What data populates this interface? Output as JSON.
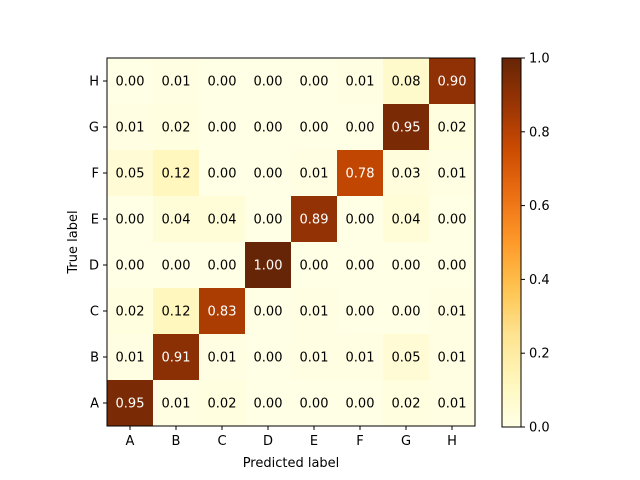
{
  "chart_data": {
    "type": "heatmap",
    "xlabel": "Predicted label",
    "ylabel": "True label",
    "x_categories": [
      "A",
      "B",
      "C",
      "D",
      "E",
      "F",
      "G",
      "H"
    ],
    "y_categories": [
      "A",
      "B",
      "C",
      "D",
      "E",
      "F",
      "G",
      "H"
    ],
    "y_order": "A at bottom, H at top",
    "value_format": "2 decimals",
    "matrix": [
      [
        0.95,
        0.01,
        0.02,
        0.0,
        0.0,
        0.0,
        0.02,
        0.01
      ],
      [
        0.01,
        0.91,
        0.01,
        0.0,
        0.01,
        0.01,
        0.05,
        0.01
      ],
      [
        0.02,
        0.12,
        0.83,
        0.0,
        0.01,
        0.0,
        0.0,
        0.01
      ],
      [
        0.0,
        0.0,
        0.0,
        1.0,
        0.0,
        0.0,
        0.0,
        0.0
      ],
      [
        0.0,
        0.04,
        0.04,
        0.0,
        0.89,
        0.0,
        0.04,
        0.0
      ],
      [
        0.05,
        0.12,
        0.0,
        0.0,
        0.01,
        0.78,
        0.03,
        0.01
      ],
      [
        0.01,
        0.02,
        0.0,
        0.0,
        0.0,
        0.0,
        0.95,
        0.02
      ],
      [
        0.0,
        0.01,
        0.0,
        0.0,
        0.0,
        0.01,
        0.08,
        0.9
      ]
    ],
    "colormap": "YlOrBr",
    "colorbar": {
      "range": [
        0.0,
        1.0
      ],
      "ticks": [
        "0.0",
        "0.2",
        "0.4",
        "0.6",
        "0.8",
        "1.0"
      ],
      "placement": "right"
    },
    "grid": false
  }
}
